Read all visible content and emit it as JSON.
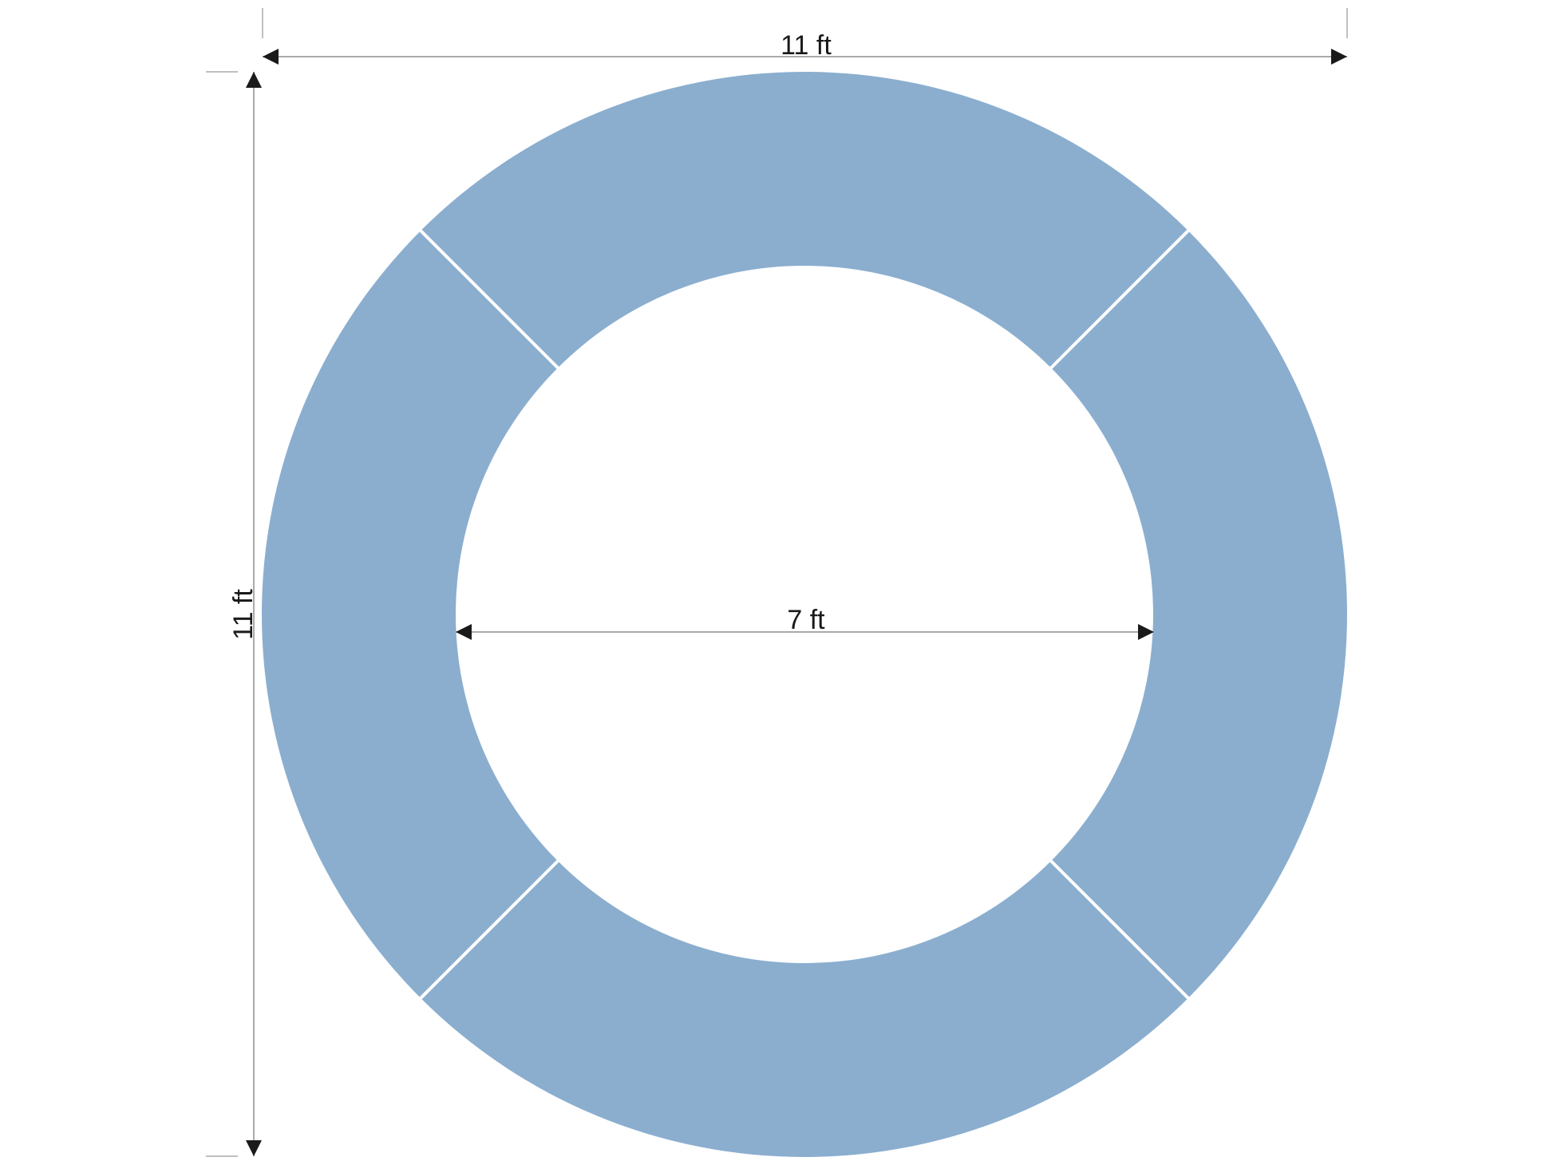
{
  "diagram": {
    "ring_color": "#8BAECF",
    "segment_count": 4,
    "outer_diameter_label": "11 ft",
    "height_label": "11 ft",
    "inner_diameter_label": "7 ft"
  }
}
